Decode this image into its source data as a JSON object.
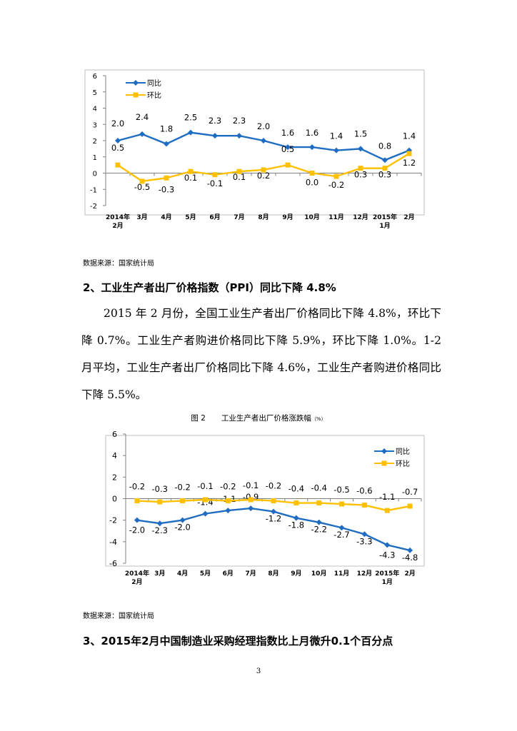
{
  "chart_data": [
    {
      "type": "line",
      "title": "",
      "categories": [
        "2014年\n2月",
        "3月",
        "4月",
        "5月",
        "6月",
        "7月",
        "8月",
        "9月",
        "10月",
        "11月",
        "12月",
        "2015年\n1月",
        "2月"
      ],
      "series": [
        {
          "name": "同比",
          "color": "#1f6dc2",
          "marker": "diamond",
          "values": [
            2.0,
            2.4,
            1.8,
            2.5,
            2.3,
            2.3,
            2.0,
            1.6,
            1.6,
            1.4,
            1.5,
            0.8,
            1.4
          ],
          "labels": [
            "2.0",
            "2.4",
            "1.8",
            "2.5",
            "2.3",
            "2.3",
            "2.0",
            "1.6",
            "1.6",
            "1.4",
            "1.5",
            "0.8",
            "1.4"
          ]
        },
        {
          "name": "环比",
          "color": "#ffc000",
          "marker": "square",
          "values": [
            0.5,
            -0.5,
            -0.3,
            0.1,
            -0.1,
            0.1,
            0.2,
            0.5,
            0.0,
            -0.2,
            0.3,
            0.3,
            1.2
          ],
          "labels": [
            "0.5",
            "-0.5",
            "-0.3",
            "0.1",
            "-0.1",
            "0.1",
            "0.2",
            "0.5",
            "0.0",
            "-0.2",
            "0.3",
            "0.3",
            "1.2"
          ]
        }
      ],
      "ylim": [
        -2,
        6
      ],
      "yticks": [
        "6",
        "5",
        "4",
        "3",
        "2",
        "1",
        "0",
        "-1",
        "-2"
      ],
      "ytick_values": [
        6,
        5,
        4,
        3,
        2,
        1,
        0,
        -1,
        -2
      ],
      "legend": "top-left",
      "grid": false
    },
    {
      "type": "line",
      "title": "",
      "categories": [
        "2014年\n2月",
        "3月",
        "4月",
        "5月",
        "6月",
        "7月",
        "8月",
        "9月",
        "10月",
        "11月",
        "12月",
        "2015年\n1月",
        "2月"
      ],
      "series": [
        {
          "name": "同比",
          "color": "#1f6dc2",
          "marker": "diamond",
          "values": [
            -2.0,
            -2.3,
            -2.0,
            -1.4,
            -1.1,
            -0.9,
            -1.2,
            -1.8,
            -2.2,
            -2.7,
            -3.3,
            -4.3,
            -4.8
          ],
          "labels": [
            "-2.0",
            "-2.3",
            "-2.0",
            "-1.4",
            "-1.1",
            "-0.9",
            "-1.2",
            "-1.8",
            "-2.2",
            "-2.7",
            "-3.3",
            "-4.3",
            "-4.8"
          ]
        },
        {
          "name": "环比",
          "color": "#ffc000",
          "marker": "square",
          "values": [
            -0.2,
            -0.3,
            -0.2,
            -0.1,
            -0.2,
            -0.1,
            -0.2,
            -0.4,
            -0.4,
            -0.5,
            -0.6,
            -1.1,
            -0.7
          ],
          "labels": [
            "-0.2",
            "-0.3",
            "-0.2",
            "-0.1",
            "-0.2",
            "-0.1",
            "-0.2",
            "-0.4",
            "-0.4",
            "-0.5",
            "-0.6",
            "-1.1",
            "-0.7"
          ]
        }
      ],
      "ylim": [
        -6,
        6
      ],
      "yticks": [
        "6",
        "4",
        "2",
        "0",
        "-2",
        "-4",
        "-6"
      ],
      "ytick_values": [
        6,
        4,
        2,
        0,
        -2,
        -4,
        -6
      ],
      "legend": "top-right",
      "grid": false
    }
  ],
  "source1": "数据来源：国家统计局",
  "heading2": "2、工业生产者出厂价格指数（PPI）同比下降 4.8%",
  "paragraph": "2015 年 2 月份，全国工业生产者出厂价格同比下降 4.8%，环比下降 0.7%。工业生产者购进价格同比下降 5.9%，环比下降 1.0%。1-2 月平均，工业生产者出厂价格同比下降 4.6%，工业生产者购进价格同比下降 5.5%。",
  "figure2": {
    "label": "图 2",
    "title": "工业生产者出厂价格涨跌幅",
    "unit": "（%）"
  },
  "source2": "数据来源：国家统计局",
  "heading3": "3、2015年2月中国制造业采购经理指数比上月微升0.1个百分点",
  "page_number": "3"
}
